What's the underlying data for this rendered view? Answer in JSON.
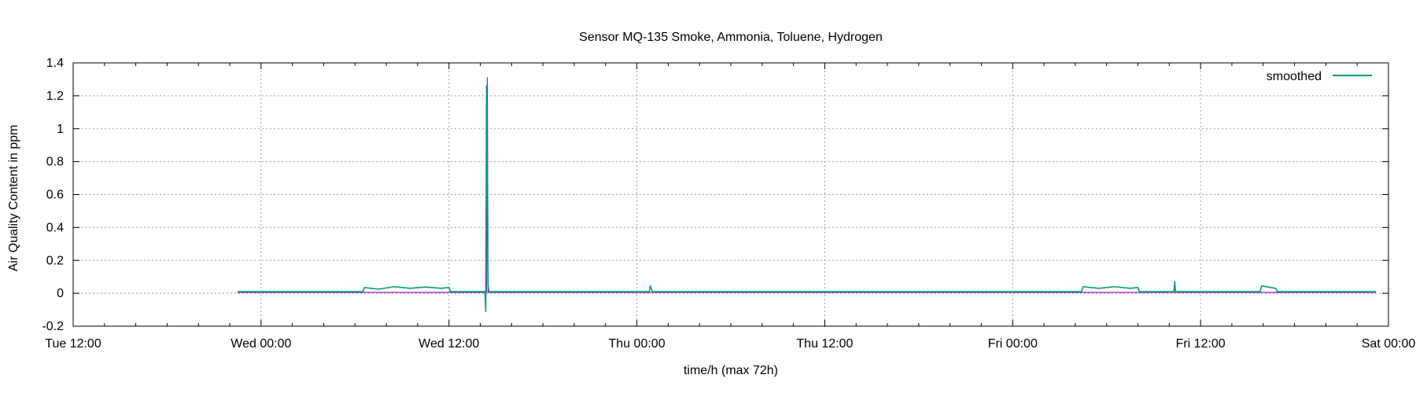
{
  "chart_data": {
    "type": "line",
    "title": "Sensor  MQ-135 Smoke, Ammonia, Toluene, Hydrogen",
    "xlabel": "time/h (max 72h)",
    "ylabel": "Air Quality Content in ppm",
    "x_tick_labels": [
      "Tue 12:00",
      "Wed 00:00",
      "Wed 12:00",
      "Thu 00:00",
      "Thu 12:00",
      "Fri 00:00",
      "Fri 12:00",
      "Sat 00:00"
    ],
    "x_tick_hours": [
      0,
      12,
      24,
      36,
      48,
      60,
      72,
      84
    ],
    "xlim_hours": [
      0,
      84
    ],
    "ylim": [
      -0.2,
      1.4
    ],
    "y_ticks": [
      -0.2,
      0,
      0.2,
      0.4,
      0.6,
      0.8,
      1,
      1.2,
      1.4
    ],
    "y_tick_labels": [
      "-0.2",
      "0",
      "0.2",
      "0.4",
      "0.6",
      "0.8",
      "1",
      "1.2",
      "1.4"
    ],
    "grid": true,
    "legend_position": "top-right",
    "series": [
      {
        "name": "smoothed",
        "color": "#009e73",
        "x": [
          10.5,
          18.5,
          18.6,
          19.5,
          20.5,
          21.5,
          22.5,
          23.5,
          24.0,
          24.1,
          26.3,
          26.35,
          26.4,
          26.45,
          26.5,
          26.55,
          26.6,
          36.8,
          36.85,
          37.0,
          64.4,
          64.5,
          65.5,
          66.5,
          67.5,
          68.0,
          68.1,
          70.3,
          70.35,
          70.4,
          75.8,
          75.9,
          76.5,
          76.8,
          76.9,
          83.2
        ],
        "y": [
          0.01,
          0.01,
          0.035,
          0.025,
          0.04,
          0.03,
          0.038,
          0.03,
          0.035,
          0.01,
          0.01,
          -0.11,
          1.26,
          0.72,
          0.05,
          0.01,
          0.01,
          0.01,
          0.045,
          0.01,
          0.01,
          0.04,
          0.03,
          0.04,
          0.03,
          0.035,
          0.01,
          0.01,
          0.07,
          0.01,
          0.01,
          0.045,
          0.035,
          0.03,
          0.01,
          0.01
        ]
      },
      {
        "name": "",
        "color": "#9400d3",
        "x": [
          10.5,
          26.4,
          26.45,
          26.5,
          83.2
        ],
        "y": [
          0.005,
          0.005,
          1.31,
          0.005,
          0.005
        ]
      }
    ]
  }
}
